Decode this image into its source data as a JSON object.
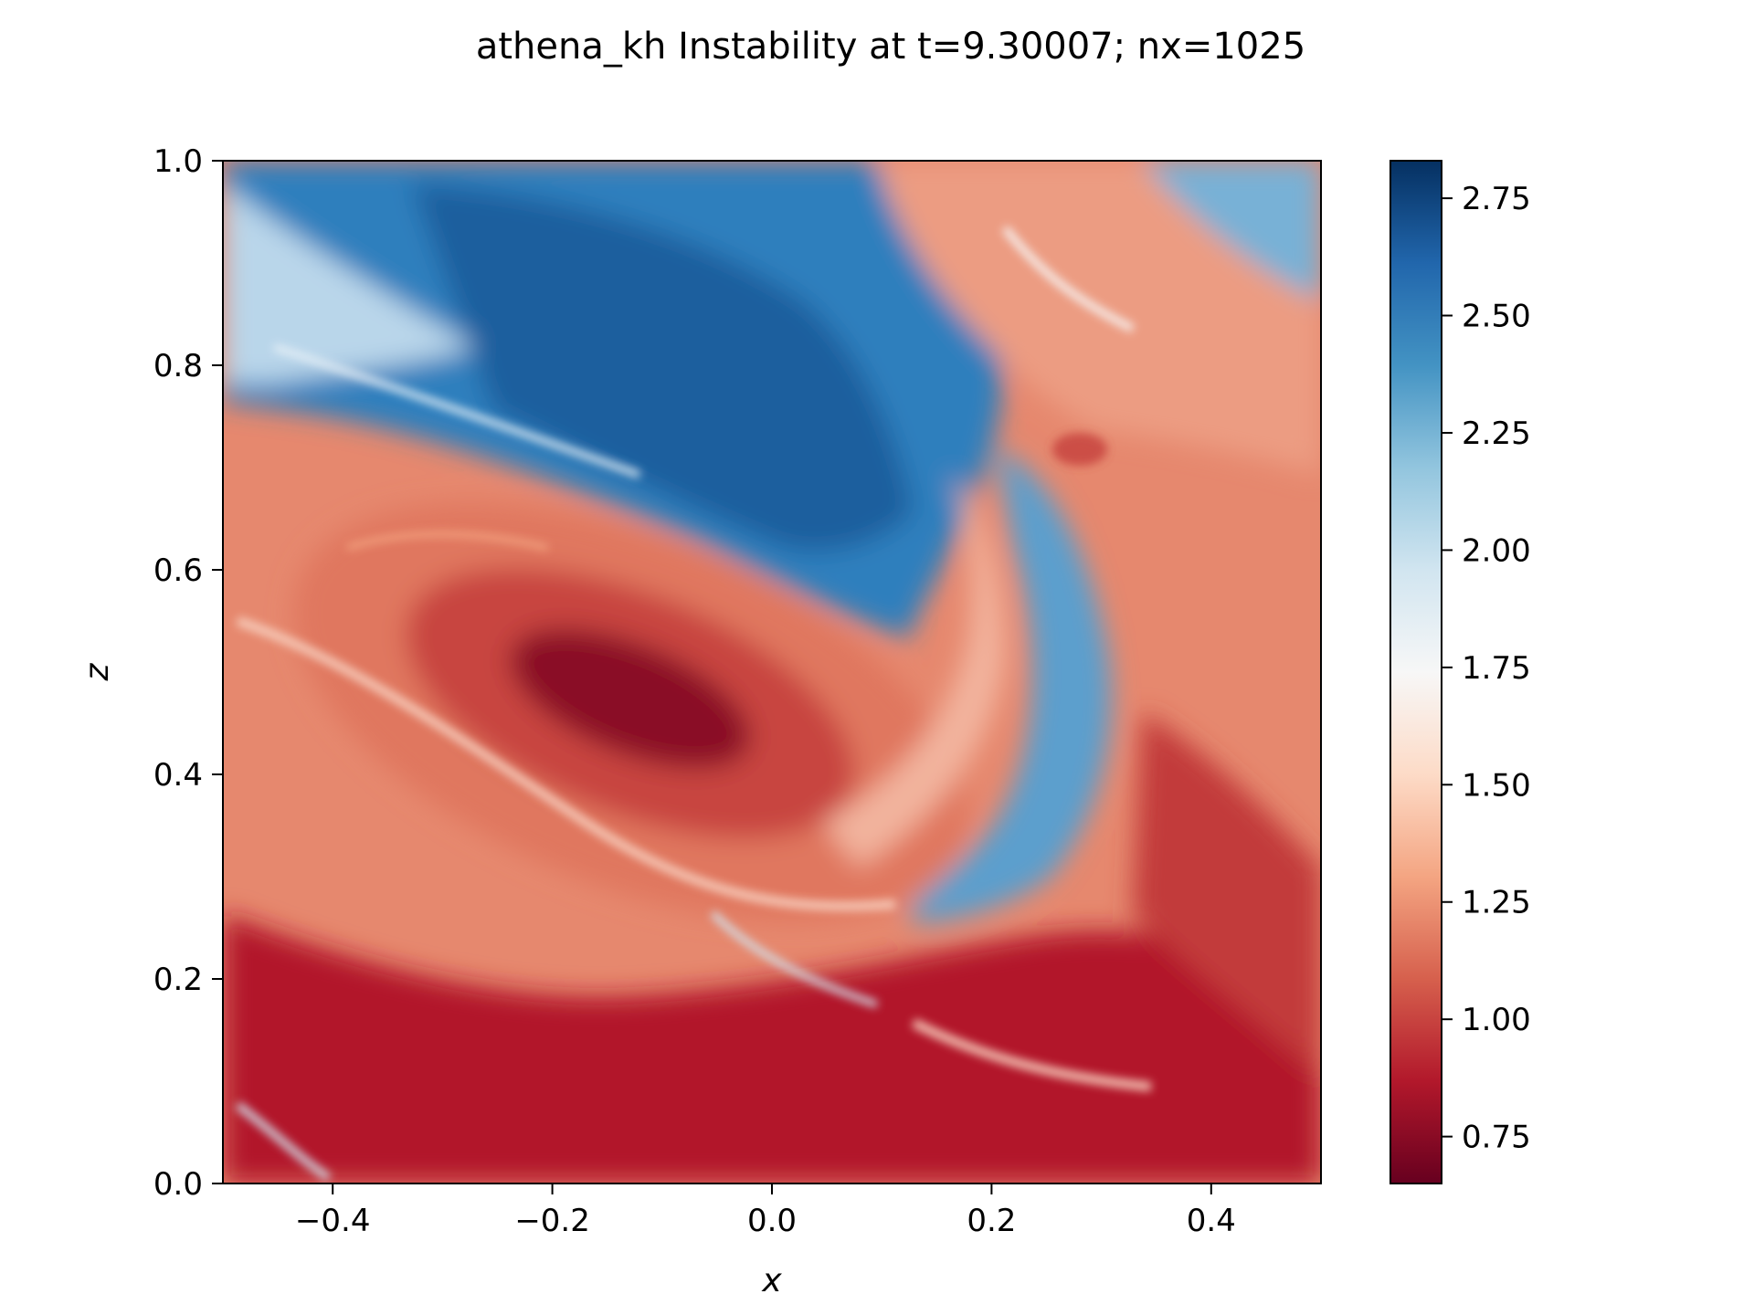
{
  "chart_data": {
    "type": "heatmap",
    "title": "athena_kh Instability at t=9.30007; nx=1025",
    "xlabel": "x",
    "ylabel": "z",
    "xlim": [
      -0.5,
      0.5
    ],
    "ylim": [
      0.0,
      1.0
    ],
    "x_ticks": [
      -0.4,
      -0.2,
      0.0,
      0.2,
      0.4
    ],
    "x_tick_labels": [
      "−0.4",
      "−0.2",
      "0.0",
      "0.2",
      "0.4"
    ],
    "y_ticks": [
      0.0,
      0.2,
      0.4,
      0.6,
      0.8,
      1.0
    ],
    "y_tick_labels": [
      "0.0",
      "0.2",
      "0.4",
      "0.6",
      "0.8",
      "1.0"
    ],
    "colorbar": {
      "colormap": "RdBu",
      "range": [
        0.65,
        2.83
      ],
      "ticks": [
        0.75,
        1.0,
        1.25,
        1.5,
        1.75,
        2.0,
        2.25,
        2.5,
        2.75
      ],
      "tick_labels": [
        "0.75",
        "1.00",
        "1.25",
        "1.50",
        "1.75",
        "2.00",
        "2.25",
        "2.50",
        "2.75"
      ],
      "colors": [
        "#67001f",
        "#b2182b",
        "#d6604d",
        "#f4a582",
        "#fddbc7",
        "#f7f7f7",
        "#d1e5f0",
        "#92c5de",
        "#4393c3",
        "#2166ac",
        "#053061"
      ]
    },
    "field_features": [
      {
        "region": "central vortex core",
        "x": -0.15,
        "z": 0.47,
        "value": 0.7
      },
      {
        "region": "upper dense band",
        "x": -0.05,
        "z": 0.8,
        "value": 2.6
      },
      {
        "region": "right blue filament",
        "x": 0.3,
        "z": 0.45,
        "value": 2.3
      },
      {
        "region": "lower dense band",
        "x": 0.1,
        "z": 0.1,
        "value": 0.9
      }
    ]
  }
}
